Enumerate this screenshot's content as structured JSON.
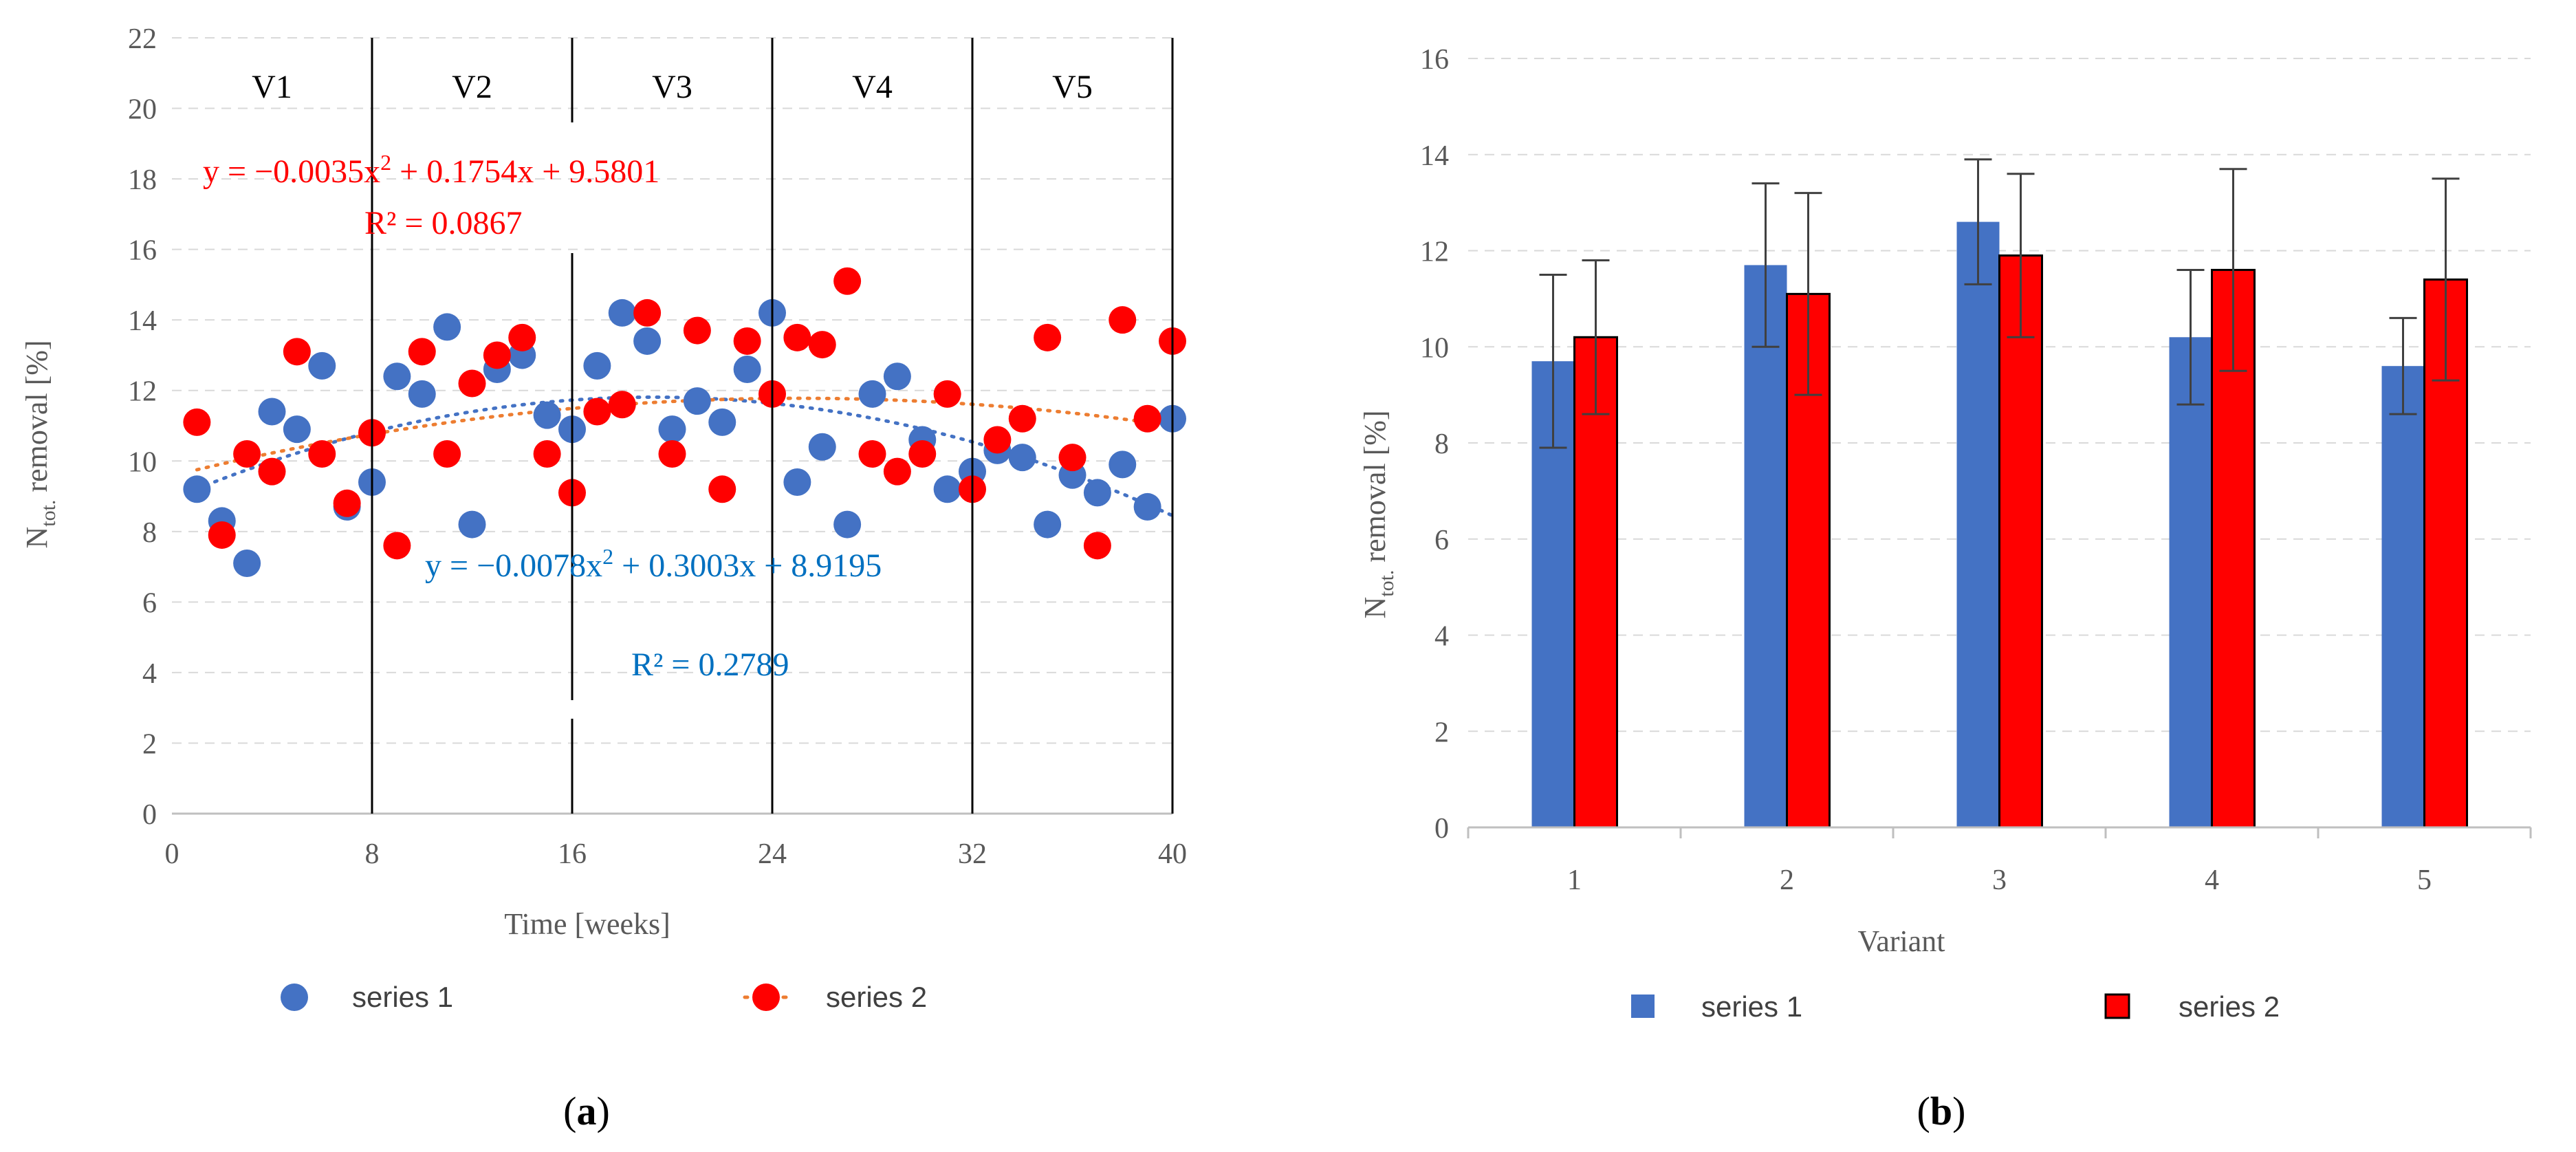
{
  "chart_data": [
    {
      "panel": "a",
      "type": "scatter",
      "title": "",
      "xlabel": "Time [weeks]",
      "ylabel_main": "N",
      "ylabel_sub": "tot.",
      "ylabel_rest": " removal  [%]",
      "xlim": [
        0,
        40
      ],
      "ylim": [
        0,
        22
      ],
      "xticks": [
        0,
        8,
        16,
        24,
        32,
        40
      ],
      "yticks": [
        0,
        2,
        4,
        6,
        8,
        10,
        12,
        14,
        16,
        18,
        20,
        22
      ],
      "grid": true,
      "variant_bounds": [
        8,
        16,
        24,
        32
      ],
      "variant_labels": [
        "V1",
        "V2",
        "V3",
        "V4",
        "V5"
      ],
      "series": [
        {
          "name": "series 1",
          "color": "#4472c4",
          "x": [
            1,
            2,
            3,
            4,
            5,
            6,
            7,
            8,
            9,
            10,
            11,
            12,
            13,
            14,
            15,
            16,
            17,
            18,
            19,
            20,
            21,
            22,
            23,
            24,
            25,
            26,
            27,
            28,
            29,
            30,
            31,
            32,
            33,
            34,
            35,
            36,
            37,
            38,
            39,
            40
          ],
          "y": [
            9.2,
            8.3,
            7.1,
            11.4,
            10.9,
            12.7,
            8.7,
            9.4,
            12.4,
            11.9,
            13.8,
            8.2,
            12.6,
            13.0,
            11.3,
            10.9,
            12.7,
            14.2,
            13.4,
            10.9,
            11.7,
            11.1,
            12.6,
            14.2,
            9.4,
            10.4,
            8.2,
            11.9,
            12.4,
            10.6,
            9.2,
            9.7,
            10.3,
            10.1,
            8.2,
            9.6,
            9.1,
            9.9,
            8.7,
            11.2
          ],
          "trend": {
            "a": -0.0078,
            "b": 0.3003,
            "c": 8.9195
          },
          "equation_lead": "y = −0.0078x",
          "equation_tail": " + 0.3003x + 8.9195",
          "r2": "R² = 0.2789"
        },
        {
          "name": "series 2",
          "color": "#ff0000",
          "x": [
            1,
            2,
            3,
            4,
            5,
            6,
            7,
            8,
            9,
            10,
            11,
            12,
            13,
            14,
            15,
            16,
            17,
            18,
            19,
            20,
            21,
            22,
            23,
            24,
            25,
            26,
            27,
            28,
            29,
            30,
            31,
            32,
            33,
            34,
            35,
            36,
            37,
            38,
            39,
            40
          ],
          "y": [
            11.1,
            7.9,
            10.2,
            9.7,
            13.1,
            10.2,
            8.8,
            10.8,
            7.6,
            13.1,
            10.2,
            12.2,
            13.0,
            13.5,
            10.2,
            9.1,
            11.4,
            11.6,
            14.2,
            10.2,
            13.7,
            9.2,
            13.4,
            11.9,
            13.5,
            13.3,
            15.1,
            10.2,
            9.7,
            10.2,
            11.9,
            9.2,
            10.6,
            11.2,
            13.5,
            10.1,
            7.6,
            14.0,
            11.2,
            13.4
          ],
          "trend": {
            "a": -0.0035,
            "b": 0.1754,
            "c": 9.5801
          },
          "equation_lead": "y = −0.0035x",
          "equation_tail": " + 0.1754x + 9.5801",
          "r2": "R² = 0.0867"
        }
      ],
      "legend": [
        "series 1",
        "series 2"
      ],
      "caption": "a"
    },
    {
      "panel": "b",
      "type": "bar",
      "title": "",
      "xlabel": "Variant",
      "ylabel_main": "N",
      "ylabel_sub": "tot.",
      "ylabel_rest": " removal [%]",
      "categories": [
        "1",
        "2",
        "3",
        "4",
        "5"
      ],
      "ylim": [
        0,
        16
      ],
      "yticks": [
        0,
        2,
        4,
        6,
        8,
        10,
        12,
        14,
        16
      ],
      "grid": true,
      "series": [
        {
          "name": "series 1",
          "color": "#4472c4",
          "values": [
            9.7,
            11.7,
            12.6,
            10.2,
            9.6
          ],
          "errors": [
            1.8,
            1.7,
            1.3,
            1.4,
            1.0
          ]
        },
        {
          "name": "series 2",
          "color": "#ff0000",
          "values": [
            10.2,
            11.1,
            11.9,
            11.6,
            11.4
          ],
          "errors": [
            1.6,
            2.1,
            1.7,
            2.1,
            2.1
          ]
        }
      ],
      "legend": [
        "series 1",
        "series 2"
      ],
      "caption": "b"
    }
  ]
}
